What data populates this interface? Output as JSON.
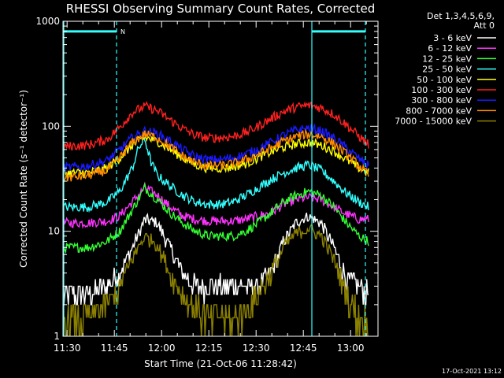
{
  "chart_data": {
    "type": "line",
    "title": "RHESSI Observing Summary Count Rates, Corrected",
    "xlabel": "Start Time (21-Oct-06 11:28:42)",
    "ylabel": "Corrected Count Rate (s⁻¹ detector⁻¹)",
    "y_scale": "log",
    "ylim": [
      1,
      1000
    ],
    "xlim_minutes_from_start": [
      0,
      100
    ],
    "x_ticks": [
      {
        "label": "11:30",
        "minutes": 1.3
      },
      {
        "label": "11:45",
        "minutes": 16.3
      },
      {
        "label": "12:00",
        "minutes": 31.3
      },
      {
        "label": "12:15",
        "minutes": 46.3
      },
      {
        "label": "12:30",
        "minutes": 61.3
      },
      {
        "label": "12:45",
        "minutes": 76.3
      },
      {
        "label": "13:00",
        "minutes": 91.3
      }
    ],
    "y_ticks": [
      {
        "label": "1",
        "value": 1
      },
      {
        "label": "10",
        "value": 10
      },
      {
        "label": "100",
        "value": 100
      },
      {
        "label": "1000",
        "value": 1000
      }
    ],
    "legend_header": [
      "Det 1,3,4,5,6,9,",
      "Att 0"
    ],
    "legend_placement": "right",
    "series": [
      {
        "name": "3 - 6 keV",
        "color": "#ffffff",
        "x": [
          0,
          8,
          14,
          18,
          22,
          26,
          30,
          34,
          38,
          42,
          46,
          50,
          54,
          58,
          62,
          66,
          70,
          74,
          78,
          82,
          86,
          90,
          94,
          97
        ],
        "y": [
          2.5,
          2.5,
          3,
          4,
          7,
          13,
          12,
          7,
          4,
          3,
          3,
          3,
          3,
          3,
          3,
          4,
          8,
          12,
          14,
          12,
          7,
          3.5,
          3,
          2.5
        ]
      },
      {
        "name": "6 - 12 keV",
        "color": "#ff33ff",
        "x": [
          0,
          8,
          14,
          18,
          22,
          26,
          30,
          34,
          38,
          42,
          46,
          50,
          54,
          58,
          62,
          66,
          70,
          74,
          78,
          82,
          86,
          90,
          94,
          97
        ],
        "y": [
          12,
          12,
          12.5,
          14,
          19,
          26,
          22,
          17,
          14,
          13,
          12.5,
          12.5,
          12.5,
          13,
          14,
          15,
          18,
          20,
          21,
          20,
          17,
          14.5,
          13,
          13
        ]
      },
      {
        "name": "12 - 25 keV",
        "color": "#33ff33",
        "x": [
          0,
          8,
          14,
          18,
          22,
          26,
          30,
          34,
          38,
          42,
          46,
          50,
          54,
          58,
          62,
          66,
          70,
          74,
          78,
          82,
          86,
          90,
          94,
          97
        ],
        "y": [
          7,
          7,
          8,
          10,
          16,
          26,
          20,
          15,
          12,
          10,
          9,
          9,
          9,
          10,
          12,
          15,
          19,
          22,
          24,
          22,
          17,
          12,
          9,
          8
        ]
      },
      {
        "name": "25 - 50 keV",
        "color": "#33ffff",
        "x": [
          0,
          8,
          14,
          18,
          22,
          24,
          26,
          28,
          30,
          34,
          38,
          42,
          46,
          50,
          54,
          58,
          62,
          66,
          70,
          74,
          78,
          82,
          86,
          90,
          94,
          97
        ],
        "y": [
          17,
          17,
          19,
          24,
          40,
          62,
          75,
          45,
          34,
          27,
          22,
          19,
          18,
          18,
          19,
          22,
          26,
          31,
          36,
          40,
          43,
          38,
          30,
          23,
          19,
          17
        ]
      },
      {
        "name": "50 - 100 keV",
        "color": "#ffff00",
        "x": [
          0,
          8,
          14,
          18,
          22,
          26,
          30,
          34,
          38,
          42,
          46,
          50,
          54,
          58,
          62,
          66,
          70,
          74,
          78,
          82,
          86,
          90,
          94,
          97
        ],
        "y": [
          36,
          36,
          40,
          50,
          66,
          78,
          72,
          60,
          50,
          43,
          40,
          40,
          41,
          44,
          50,
          57,
          63,
          68,
          70,
          66,
          58,
          48,
          40,
          36
        ]
      },
      {
        "name": "100 - 300 keV",
        "color": "#ff2020",
        "x": [
          0,
          8,
          14,
          18,
          22,
          26,
          30,
          34,
          38,
          42,
          46,
          50,
          54,
          58,
          62,
          66,
          70,
          74,
          78,
          82,
          86,
          90,
          94,
          97
        ],
        "y": [
          64,
          66,
          75,
          98,
          135,
          155,
          140,
          115,
          95,
          82,
          77,
          78,
          80,
          87,
          100,
          118,
          138,
          152,
          158,
          150,
          130,
          103,
          80,
          67
        ]
      },
      {
        "name": "300 - 800 keV",
        "color": "#1a1aff",
        "x": [
          0,
          8,
          14,
          18,
          22,
          26,
          30,
          34,
          38,
          42,
          46,
          50,
          54,
          58,
          62,
          66,
          70,
          74,
          78,
          82,
          86,
          90,
          94,
          97
        ],
        "y": [
          40,
          42,
          47,
          60,
          78,
          90,
          85,
          72,
          60,
          51,
          48,
          48,
          50,
          54,
          61,
          70,
          82,
          92,
          96,
          90,
          77,
          62,
          49,
          42
        ]
      },
      {
        "name": "800 - 7000 keV",
        "color": "#ff8c00",
        "x": [
          0,
          8,
          14,
          18,
          22,
          26,
          30,
          34,
          38,
          42,
          46,
          50,
          54,
          58,
          62,
          66,
          70,
          74,
          78,
          82,
          86,
          90,
          94,
          97
        ],
        "y": [
          32,
          34,
          38,
          50,
          70,
          84,
          78,
          64,
          52,
          45,
          42,
          42,
          44,
          48,
          54,
          62,
          72,
          80,
          84,
          80,
          68,
          54,
          42,
          34
        ]
      },
      {
        "name": "7000 - 15000 keV",
        "color": "#8b8000",
        "x": [
          0,
          8,
          14,
          18,
          22,
          26,
          30,
          34,
          38,
          42,
          46,
          50,
          54,
          58,
          62,
          66,
          70,
          74,
          78,
          82,
          86,
          90,
          94,
          97
        ],
        "y": [
          1.5,
          1.5,
          2,
          3,
          5.5,
          9,
          7.5,
          4,
          2.5,
          1.8,
          1.5,
          1.5,
          1.5,
          1.8,
          2.5,
          4,
          7,
          9.5,
          10.5,
          9,
          5.5,
          2.5,
          1.5,
          1.3
        ]
      }
    ],
    "annotations": [
      {
        "type": "flag-marker",
        "label": "N",
        "x_minutes": 19
      },
      {
        "type": "vertical-line-solid",
        "color": "#33ffff",
        "x_minutes": 0
      },
      {
        "type": "vertical-line-dashed",
        "color": "#33ffff",
        "x_minutes": 17
      },
      {
        "type": "vertical-line-solid",
        "color": "#33ffff",
        "x_minutes": 79
      },
      {
        "type": "vertical-line-dashed",
        "color": "#33ffff",
        "x_minutes": 96
      }
    ],
    "attenuator_bar": {
      "color": "#33ffff",
      "level": 800,
      "spans": [
        [
          0,
          17
        ],
        [
          79,
          96
        ]
      ]
    }
  },
  "footer": {
    "timestamp": "17-Oct-2021 13:12"
  }
}
